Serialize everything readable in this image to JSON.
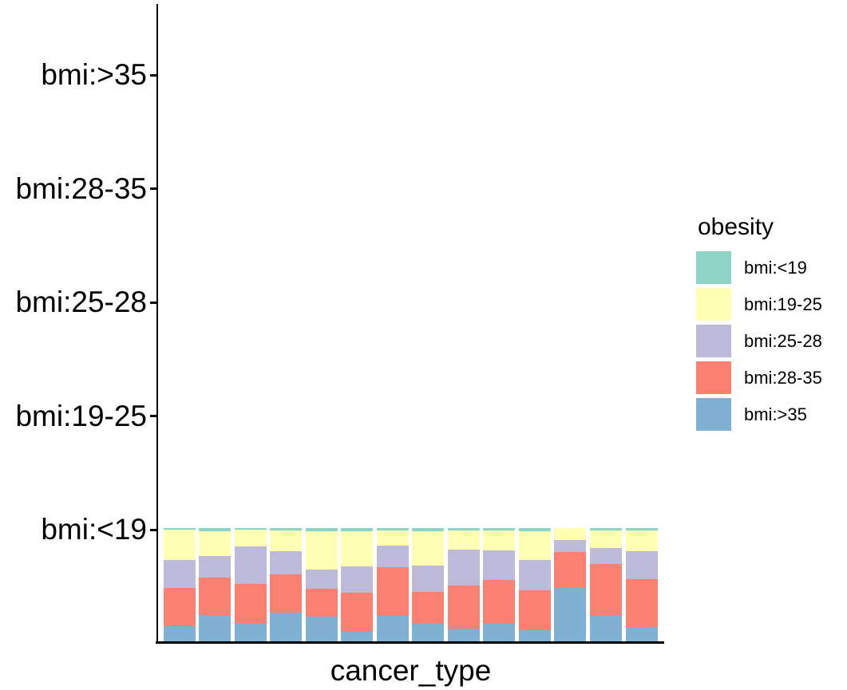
{
  "chart_data": {
    "type": "bar",
    "stacked": true,
    "normalized": true,
    "title": "",
    "xlabel": "cancer_type",
    "ylabel": "",
    "x_tick_labels": [],
    "n_bars": 14,
    "y_tick_labels": [
      "bmi:>35",
      "bmi:28-35",
      "bmi:25-28",
      "bmi:19-25",
      "bmi:<19"
    ],
    "grid": "off",
    "legend_position": "right",
    "stack_order_bottom_to_top": [
      "bmi:>35",
      "bmi:28-35",
      "bmi:25-28",
      "bmi:19-25",
      "bmi:<19"
    ],
    "series": [
      {
        "name": "bmi:>35",
        "color": "#80B1D3",
        "values": [
          0.135,
          0.235,
          0.16,
          0.25,
          0.215,
          0.09,
          0.225,
          0.155,
          0.11,
          0.155,
          0.1,
          0.475,
          0.23,
          0.13
        ]
      },
      {
        "name": "bmi:28-35",
        "color": "#FB8072",
        "values": [
          0.34,
          0.325,
          0.35,
          0.34,
          0.25,
          0.34,
          0.43,
          0.28,
          0.38,
          0.39,
          0.35,
          0.315,
          0.455,
          0.42
        ]
      },
      {
        "name": "bmi:25-28",
        "color": "#BEBADA",
        "values": [
          0.24,
          0.195,
          0.33,
          0.205,
          0.17,
          0.23,
          0.19,
          0.235,
          0.32,
          0.26,
          0.27,
          0.105,
          0.14,
          0.245
        ]
      },
      {
        "name": "bmi:19-25",
        "color": "#FFFFB3",
        "values": [
          0.27,
          0.215,
          0.145,
          0.185,
          0.335,
          0.315,
          0.135,
          0.3,
          0.17,
          0.175,
          0.255,
          0.105,
          0.155,
          0.185
        ]
      },
      {
        "name": "bmi:<19",
        "color": "#8DD3C7",
        "values": [
          0.015,
          0.03,
          0.015,
          0.02,
          0.03,
          0.025,
          0.02,
          0.03,
          0.02,
          0.02,
          0.025,
          0.0,
          0.02,
          0.02
        ]
      }
    ]
  },
  "axes": {
    "x_title": "cancer_type",
    "y_tick_labels": [
      "bmi:>35",
      "bmi:28-35",
      "bmi:25-28",
      "bmi:19-25",
      "bmi:<19"
    ]
  },
  "legend": {
    "title": "obesity",
    "items": [
      {
        "label": "bmi:<19",
        "color": "#8DD3C7"
      },
      {
        "label": "bmi:19-25",
        "color": "#FFFFB3"
      },
      {
        "label": "bmi:25-28",
        "color": "#BEBADA"
      },
      {
        "label": "bmi:28-35",
        "color": "#FB8072"
      },
      {
        "label": "bmi:>35",
        "color": "#80B1D3"
      }
    ]
  },
  "colors": {
    "axis": "#000000",
    "text": "#000000",
    "background": "#FFFFFF"
  }
}
